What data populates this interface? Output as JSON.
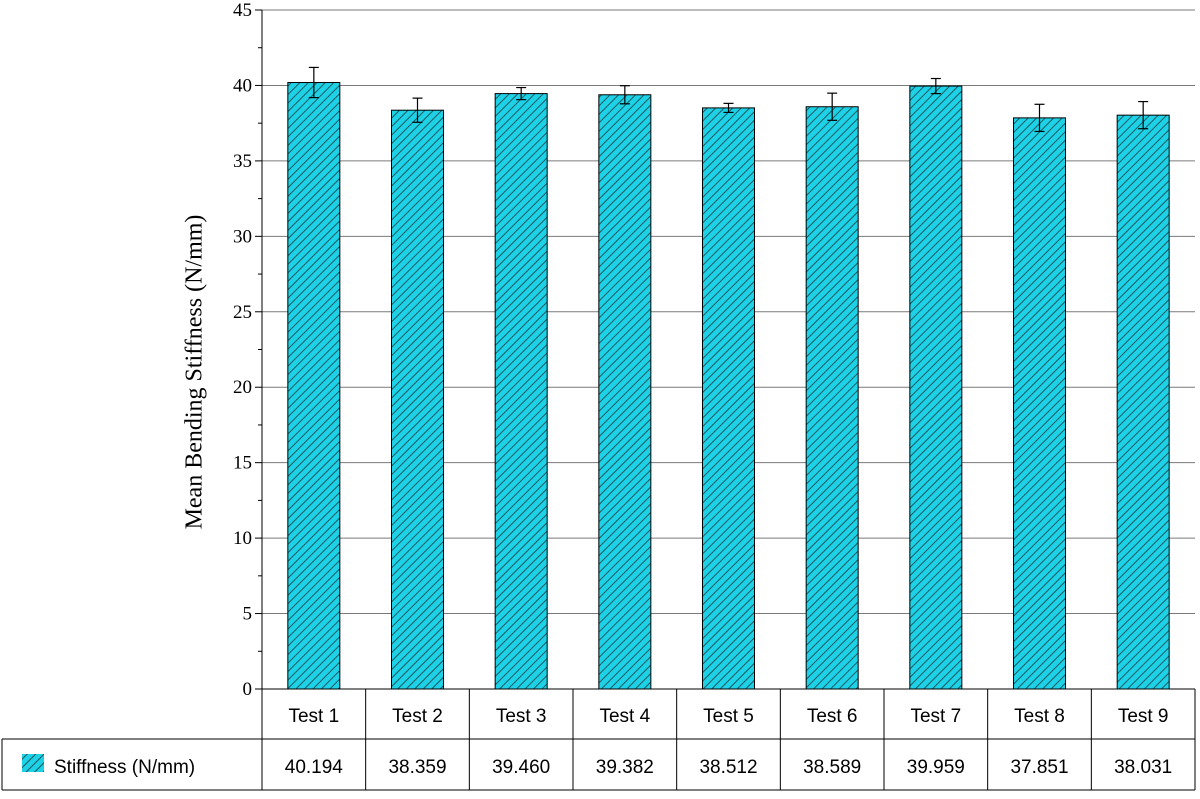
{
  "chart_data": {
    "type": "bar",
    "categories": [
      "Test 1",
      "Test 2",
      "Test 3",
      "Test 4",
      "Test 5",
      "Test 6",
      "Test 7",
      "Test 8",
      "Test 9"
    ],
    "series": [
      {
        "name": "Stiffness (N/mm)",
        "values": [
          40.194,
          38.359,
          39.46,
          39.382,
          38.512,
          38.589,
          39.959,
          37.851,
          38.031
        ],
        "value_labels": [
          "40.194",
          "38.359",
          "39.460",
          "39.382",
          "38.512",
          "38.589",
          "39.959",
          "37.851",
          "38.031"
        ],
        "error": [
          1.0,
          0.8,
          0.4,
          0.6,
          0.3,
          0.9,
          0.5,
          0.9,
          0.9
        ],
        "color": "#1dd1e6",
        "hatch_color": "#1a3a40"
      }
    ],
    "ylabel": "Mean Bending Stiffness (N/mm)",
    "xlabel": "",
    "ylim": [
      0,
      45
    ],
    "yticks": [
      0,
      5,
      10,
      15,
      20,
      25,
      30,
      35,
      40,
      45
    ],
    "grid": true,
    "legend": "data-table-left"
  }
}
